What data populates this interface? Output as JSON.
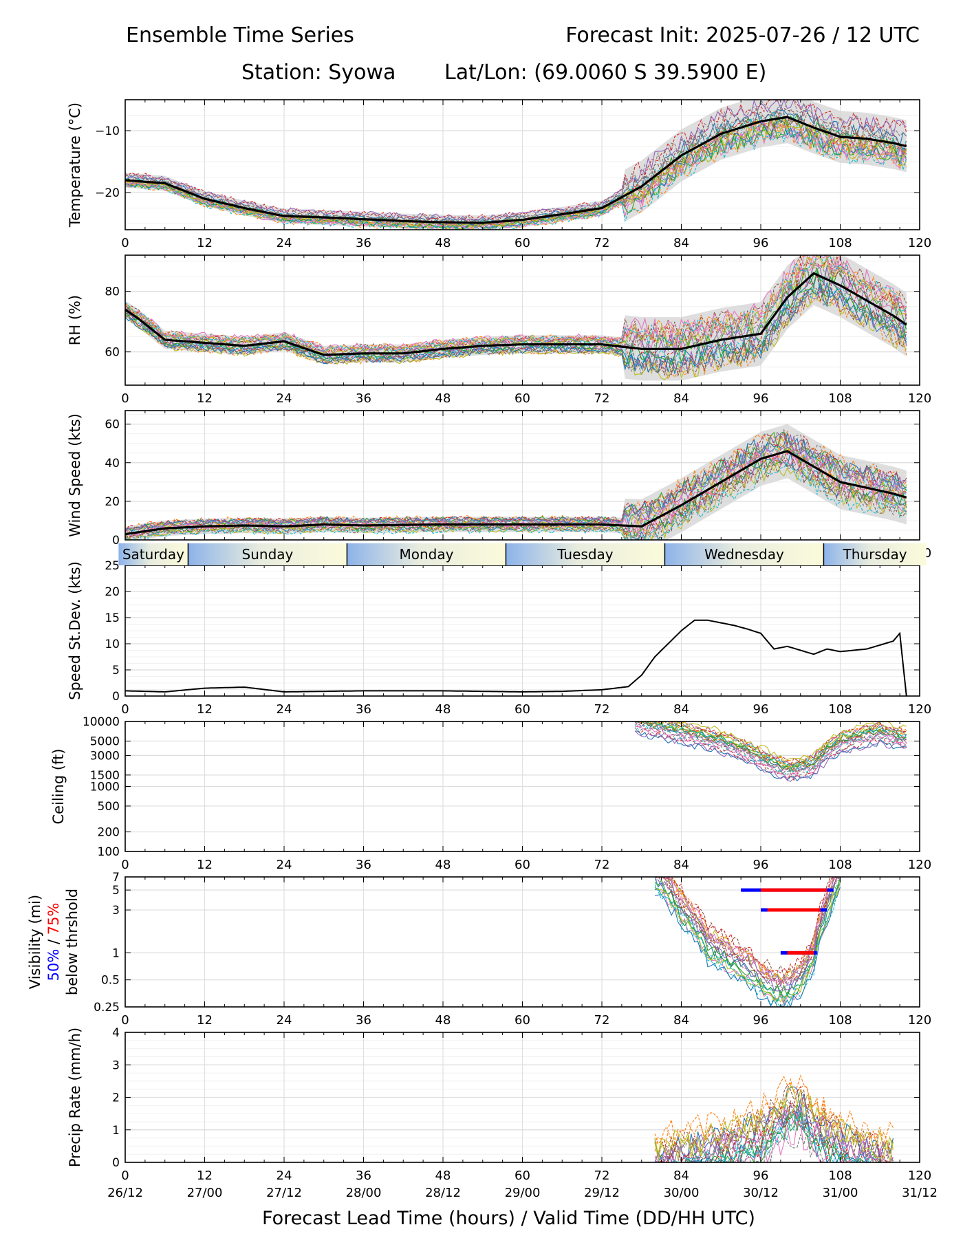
{
  "header": {
    "title_left": "Ensemble Time Series",
    "title_right": "Forecast Init: 2025-07-26 / 12 UTC",
    "station": "Station: Syowa",
    "latlon": "Lat/Lon: (69.0060 S 39.5900 E)"
  },
  "xlabel": "Forecast Lead Time (hours) / Valid Time (DD/HH UTC)",
  "x_ticks": [
    0,
    12,
    24,
    36,
    48,
    60,
    72,
    84,
    96,
    108,
    120
  ],
  "valid_time_labels": [
    "26/12",
    "27/00",
    "27/12",
    "28/00",
    "28/12",
    "29/00",
    "29/12",
    "30/00",
    "30/12",
    "31/00",
    "31/12"
  ],
  "day_band": [
    {
      "label": "Saturday",
      "start": -1,
      "end": 9.5
    },
    {
      "label": "Sunday",
      "start": 9.5,
      "end": 33.5
    },
    {
      "label": "Monday",
      "start": 33.5,
      "end": 57.5
    },
    {
      "label": "Tuesday",
      "start": 57.5,
      "end": 81.5
    },
    {
      "label": "Wednesday",
      "start": 81.5,
      "end": 105.5
    },
    {
      "label": "Thursday",
      "start": 105.5,
      "end": 121
    }
  ],
  "colors": {
    "mean": "#000000",
    "spread": "#d3d3d3",
    "vis50": "#0000ff",
    "vis75": "#ff0000",
    "members": [
      "#1f77b4",
      "#ff7f0e",
      "#2ca02c",
      "#d62728",
      "#9467bd",
      "#8c564b",
      "#e377c2",
      "#7f7f7f",
      "#bcbd22",
      "#17becf"
    ]
  },
  "chart_data": [
    {
      "type": "line",
      "ylabel": "Temperature (°C)",
      "ylim": [
        -26,
        -5
      ],
      "yticks": [
        -10,
        -20
      ],
      "ytick_labels": [
        "−10",
        "−20"
      ],
      "series": [
        {
          "name": "",
          "x": [
            0,
            6,
            12,
            18,
            24,
            30,
            36,
            42,
            48,
            54,
            60,
            66,
            72,
            78,
            84,
            90,
            96,
            100,
            104,
            108,
            112,
            116,
            118
          ],
          "y": [
            -18,
            -18.5,
            -21,
            -22.5,
            -23.8,
            -24,
            -24.3,
            -24.6,
            -24.8,
            -24.9,
            -24.4,
            -23.5,
            -22.5,
            -19,
            -14,
            -10.5,
            -8.5,
            -7.8,
            -9.5,
            -11,
            -11.3,
            -12,
            -12.5
          ]
        }
      ]
    },
    {
      "type": "line",
      "ylabel": "RH (%)",
      "ylim": [
        49,
        92
      ],
      "yticks": [
        60,
        80
      ],
      "ytick_labels": [
        "60",
        "80"
      ],
      "series": [
        {
          "name": "",
          "x": [
            0,
            2,
            6,
            12,
            18,
            24,
            30,
            36,
            42,
            48,
            54,
            60,
            66,
            72,
            78,
            84,
            90,
            96,
            100,
            104,
            108,
            112,
            116,
            118
          ],
          "y": [
            74,
            71,
            64,
            63,
            62,
            63.5,
            59,
            59.5,
            59.5,
            61,
            62,
            62.5,
            62.5,
            62.5,
            61,
            61,
            64,
            66,
            78,
            86,
            82,
            77,
            72,
            69
          ]
        }
      ]
    },
    {
      "type": "line",
      "ylabel": "Wind Speed (kts)",
      "ylim": [
        0,
        67
      ],
      "yticks": [
        0,
        20,
        40,
        60
      ],
      "ytick_labels": [
        "0",
        "20",
        "40",
        "60"
      ],
      "series": [
        {
          "name": "",
          "x": [
            0,
            2,
            6,
            12,
            18,
            24,
            30,
            36,
            42,
            48,
            54,
            60,
            66,
            72,
            78,
            84,
            90,
            96,
            100,
            104,
            108,
            112,
            116,
            118
          ],
          "y": [
            3,
            4,
            6,
            7,
            7.5,
            7,
            8,
            7.5,
            7.8,
            8,
            8,
            8,
            8,
            8,
            7,
            18,
            30,
            42,
            46,
            38,
            30,
            27,
            24,
            22
          ]
        }
      ]
    },
    {
      "type": "line",
      "ylabel": "Speed St.Dev. (kts)",
      "ylim": [
        0,
        25
      ],
      "yticks": [
        0,
        5,
        10,
        15,
        20,
        25
      ],
      "ytick_labels": [
        "0",
        "5",
        "10",
        "15",
        "20",
        "25"
      ],
      "series": [
        {
          "name": "",
          "x": [
            0,
            6,
            12,
            18,
            24,
            30,
            36,
            42,
            48,
            54,
            60,
            66,
            72,
            76,
            78,
            80,
            82,
            84,
            86,
            88,
            90,
            92,
            94,
            96,
            98,
            100,
            104,
            106,
            108,
            112,
            116,
            117,
            118
          ],
          "y": [
            1,
            0.8,
            1.5,
            1.7,
            0.8,
            0.9,
            1,
            1,
            1,
            0.9,
            0.8,
            0.9,
            1.2,
            1.8,
            4,
            7.5,
            10,
            12.5,
            14.5,
            14.5,
            14,
            13.5,
            12.8,
            12,
            9,
            9.5,
            8,
            9,
            8.5,
            9,
            10.5,
            12,
            0
          ]
        }
      ]
    },
    {
      "type": "line",
      "ylabel": "Ceiling (ft)",
      "yscale": "log",
      "ylim": [
        100,
        10000
      ],
      "yticks": [
        100,
        200,
        500,
        1000,
        1500,
        3000,
        5000,
        10000
      ],
      "ytick_labels": [
        "100",
        "200",
        "500",
        "1000",
        "1500",
        "3000",
        "5000",
        "10000"
      ],
      "series": [
        {
          "name": "",
          "x": [
            77,
            84,
            90,
            96,
            100,
            104,
            108,
            114,
            118
          ],
          "y": [
            10000,
            7000,
            5000,
            2800,
            1800,
            2200,
            5000,
            7000,
            5500
          ]
        }
      ]
    },
    {
      "type": "line",
      "ylabel": "Visibility (mi)",
      "ylabel_extra": [
        "50%",
        " / ",
        "75%",
        "below thrshold"
      ],
      "yscale": "log",
      "ylim": [
        0.25,
        7
      ],
      "yticks": [
        0.25,
        0.5,
        1,
        3,
        5,
        7
      ],
      "ytick_labels": [
        "0.25",
        "0.5",
        "1",
        "3",
        "5",
        "7"
      ],
      "threshold_bars": [
        {
          "level": 5,
          "p50": [
            93,
            107
          ],
          "p75": [
            96,
            106
          ]
        },
        {
          "level": 3,
          "p50": [
            96,
            106
          ],
          "p75": [
            97,
            105
          ]
        },
        {
          "level": 1,
          "p50": [
            99,
            104.5
          ],
          "p75": [
            100,
            104
          ]
        }
      ],
      "series": [
        {
          "name": "",
          "x": [
            80,
            84,
            88,
            92,
            96,
            98,
            100,
            102,
            104,
            106,
            108
          ],
          "y": [
            7,
            3,
            1.2,
            0.8,
            0.5,
            0.4,
            0.38,
            0.5,
            0.9,
            3,
            7
          ]
        }
      ]
    },
    {
      "type": "line",
      "ylabel": "Precip Rate (mm/h)",
      "ylim": [
        0,
        4
      ],
      "yticks": [
        0,
        1,
        2,
        3,
        4
      ],
      "ytick_labels": [
        "0",
        "1",
        "2",
        "3",
        "4"
      ],
      "series": [
        {
          "name": "",
          "x": [
            80,
            84,
            88,
            92,
            96,
            98,
            100,
            102,
            104,
            108,
            112,
            116
          ],
          "y": [
            0,
            0.1,
            0.3,
            0.5,
            0.8,
            1.2,
            1.5,
            1.6,
            1.0,
            0.5,
            0.2,
            0
          ]
        }
      ]
    }
  ]
}
